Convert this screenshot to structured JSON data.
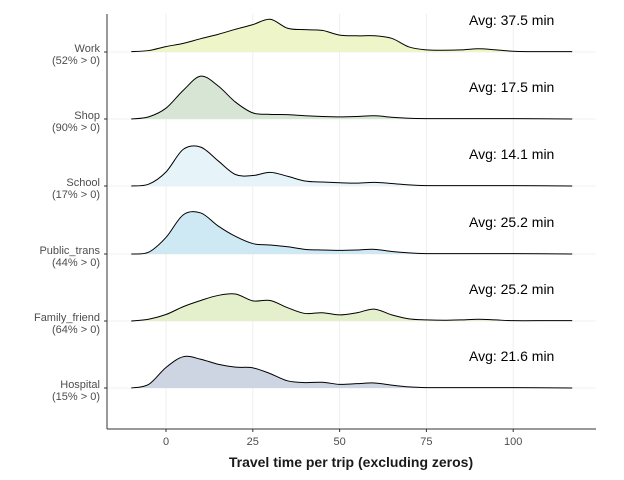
{
  "chart_data": {
    "type": "area",
    "subtype": "ridgeline",
    "xlabel": "Travel time per trip (excluding zeros)",
    "x_ticks": [
      0,
      25,
      50,
      75,
      100
    ],
    "xlim": [
      -17,
      124
    ],
    "grid": true,
    "grid_color": "#ebebeb",
    "outline_color": "#000000",
    "series": [
      {
        "name": "Work",
        "share_label": "(52% > 0)",
        "avg_label": "Avg: 37.5 min",
        "color": "#edf5c9",
        "points": [
          [
            -10,
            0.01
          ],
          [
            -5,
            0.04
          ],
          [
            0,
            0.15
          ],
          [
            5,
            0.24
          ],
          [
            10,
            0.37
          ],
          [
            15,
            0.49
          ],
          [
            20,
            0.63
          ],
          [
            25,
            0.76
          ],
          [
            30,
            0.91
          ],
          [
            35,
            0.66
          ],
          [
            40,
            0.62
          ],
          [
            45,
            0.6
          ],
          [
            50,
            0.47
          ],
          [
            55,
            0.45
          ],
          [
            60,
            0.45
          ],
          [
            65,
            0.38
          ],
          [
            70,
            0.14
          ],
          [
            75,
            0.06
          ],
          [
            80,
            0.05
          ],
          [
            85,
            0.06
          ],
          [
            90,
            0.09
          ],
          [
            95,
            0.06
          ],
          [
            100,
            0.02
          ],
          [
            105,
            0.01
          ],
          [
            110,
            0.01
          ],
          [
            117,
            0.01
          ]
        ]
      },
      {
        "name": "Shop",
        "share_label": "(90% > 0)",
        "avg_label": "Avg: 17.5 min",
        "color": "#d7e6d4",
        "points": [
          [
            -10,
            0.0
          ],
          [
            -5,
            0.06
          ],
          [
            0,
            0.3
          ],
          [
            5,
            0.8
          ],
          [
            10,
            1.19
          ],
          [
            15,
            0.92
          ],
          [
            20,
            0.47
          ],
          [
            25,
            0.17
          ],
          [
            30,
            0.13
          ],
          [
            35,
            0.12
          ],
          [
            40,
            0.09
          ],
          [
            45,
            0.07
          ],
          [
            50,
            0.06
          ],
          [
            55,
            0.07
          ],
          [
            60,
            0.09
          ],
          [
            65,
            0.05
          ],
          [
            70,
            0.02
          ],
          [
            75,
            0.01
          ],
          [
            80,
            0.01
          ],
          [
            90,
            0.01
          ],
          [
            100,
            0.01
          ],
          [
            117,
            0.0
          ]
        ]
      },
      {
        "name": "School",
        "share_label": "(17% > 0)",
        "avg_label": "Avg: 14.1 min",
        "color": "#e6f4fa",
        "points": [
          [
            -10,
            0.0
          ],
          [
            -5,
            0.05
          ],
          [
            0,
            0.39
          ],
          [
            5,
            1.02
          ],
          [
            10,
            1.08
          ],
          [
            15,
            0.7
          ],
          [
            20,
            0.32
          ],
          [
            25,
            0.29
          ],
          [
            30,
            0.38
          ],
          [
            35,
            0.27
          ],
          [
            40,
            0.14
          ],
          [
            45,
            0.11
          ],
          [
            50,
            0.09
          ],
          [
            55,
            0.08
          ],
          [
            60,
            0.1
          ],
          [
            65,
            0.07
          ],
          [
            70,
            0.03
          ],
          [
            75,
            0.01
          ],
          [
            80,
            0.01
          ],
          [
            90,
            0.01
          ],
          [
            100,
            0.01
          ],
          [
            117,
            0.0
          ]
        ]
      },
      {
        "name": "Public_trans",
        "share_label": "(44% > 0)",
        "avg_label": "Avg: 25.2 min",
        "color": "#cfe9f4",
        "points": [
          [
            -10,
            0.0
          ],
          [
            -5,
            0.05
          ],
          [
            0,
            0.46
          ],
          [
            5,
            1.09
          ],
          [
            10,
            1.14
          ],
          [
            15,
            0.78
          ],
          [
            20,
            0.49
          ],
          [
            25,
            0.29
          ],
          [
            30,
            0.25
          ],
          [
            35,
            0.2
          ],
          [
            40,
            0.13
          ],
          [
            45,
            0.11
          ],
          [
            50,
            0.1
          ],
          [
            55,
            0.11
          ],
          [
            60,
            0.13
          ],
          [
            65,
            0.07
          ],
          [
            70,
            0.03
          ],
          [
            75,
            0.01
          ],
          [
            80,
            0.01
          ],
          [
            90,
            0.01
          ],
          [
            100,
            0.01
          ],
          [
            117,
            0.0
          ]
        ]
      },
      {
        "name": "Family_friend",
        "share_label": "(64% > 0)",
        "avg_label": "Avg: 25.2 min",
        "color": "#e4f0cc",
        "points": [
          [
            -10,
            0.0
          ],
          [
            -5,
            0.05
          ],
          [
            0,
            0.18
          ],
          [
            5,
            0.4
          ],
          [
            10,
            0.57
          ],
          [
            15,
            0.71
          ],
          [
            20,
            0.75
          ],
          [
            25,
            0.56
          ],
          [
            30,
            0.57
          ],
          [
            35,
            0.37
          ],
          [
            40,
            0.21
          ],
          [
            45,
            0.23
          ],
          [
            50,
            0.17
          ],
          [
            55,
            0.23
          ],
          [
            60,
            0.33
          ],
          [
            65,
            0.17
          ],
          [
            70,
            0.06
          ],
          [
            75,
            0.03
          ],
          [
            80,
            0.02
          ],
          [
            85,
            0.03
          ],
          [
            90,
            0.05
          ],
          [
            95,
            0.03
          ],
          [
            100,
            0.01
          ],
          [
            110,
            0.01
          ],
          [
            117,
            0.01
          ]
        ]
      },
      {
        "name": "Hospital",
        "share_label": "(15% > 0)",
        "avg_label": "Avg: 21.6 min",
        "color": "#cdd5e3",
        "points": [
          [
            -10,
            0.0
          ],
          [
            -5,
            0.1
          ],
          [
            0,
            0.57
          ],
          [
            5,
            0.87
          ],
          [
            10,
            0.8
          ],
          [
            15,
            0.66
          ],
          [
            20,
            0.58
          ],
          [
            25,
            0.56
          ],
          [
            30,
            0.4
          ],
          [
            35,
            0.2
          ],
          [
            40,
            0.15
          ],
          [
            45,
            0.16
          ],
          [
            50,
            0.1
          ],
          [
            55,
            0.12
          ],
          [
            60,
            0.14
          ],
          [
            65,
            0.08
          ],
          [
            70,
            0.03
          ],
          [
            75,
            0.01
          ],
          [
            80,
            0.01
          ],
          [
            90,
            0.01
          ],
          [
            100,
            0.01
          ],
          [
            117,
            0.0
          ]
        ]
      }
    ]
  }
}
